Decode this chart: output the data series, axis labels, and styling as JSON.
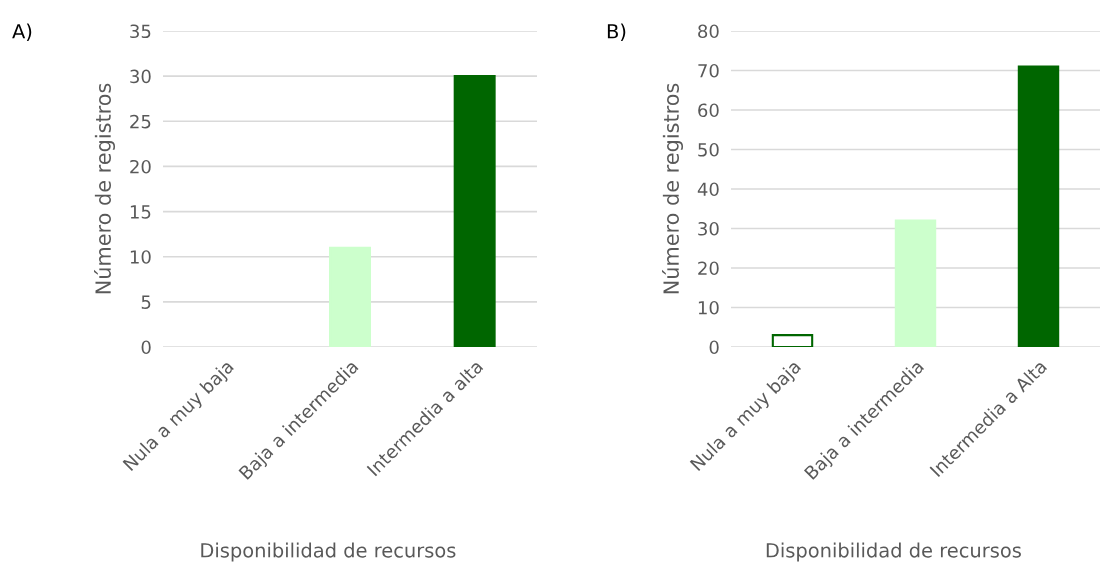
{
  "chart_data": [
    {
      "type": "bar",
      "annotations": [
        "A)"
      ],
      "ylabel": "Número de registros",
      "xlabel": "Disponibilidad de recursos",
      "categories": [
        "Nula a muy baja",
        "Baja a intermedia",
        "Intermedia a alta"
      ],
      "values": [
        0,
        11,
        30
      ],
      "colors": [
        "#ffffff",
        "#ccffcc",
        "#006600"
      ],
      "ylim": [
        0,
        35
      ],
      "yticks": [
        0,
        5,
        10,
        15,
        20,
        25,
        30,
        35
      ],
      "grid": "y"
    },
    {
      "type": "bar",
      "annotations": [
        "B)"
      ],
      "ylabel": "Número de registros",
      "xlabel": "Disponibilidad de recursos",
      "categories": [
        "Nula a muy baja",
        "Baja a intermedia",
        "Intermedia a Alta"
      ],
      "values": [
        3,
        32,
        71
      ],
      "colors": [
        "#ffffff",
        "#ccffcc",
        "#006600"
      ],
      "ylim": [
        0,
        80
      ],
      "yticks": [
        0,
        10,
        20,
        30,
        40,
        50,
        60,
        70,
        80
      ],
      "grid": "y"
    }
  ]
}
